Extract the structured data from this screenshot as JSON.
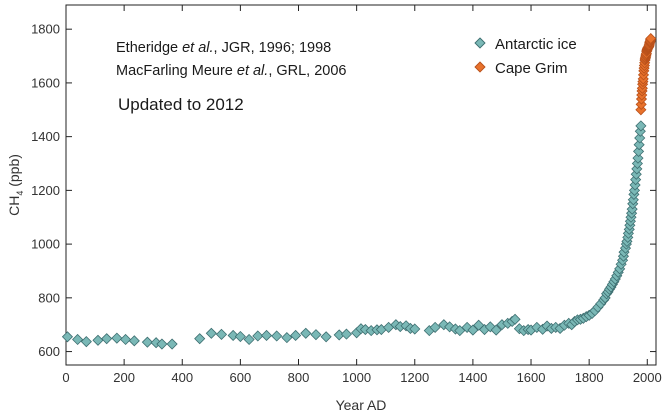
{
  "chart_data": {
    "type": "scatter",
    "xlabel": "Year AD",
    "ylabel": {
      "prefix": "CH",
      "subscript": "4",
      "suffix": " (ppb)"
    },
    "xlim": [
      0,
      2030
    ],
    "ylim": [
      550,
      1890
    ],
    "xticks": [
      0,
      200,
      400,
      600,
      800,
      1000,
      1200,
      1400,
      1600,
      1800,
      2000
    ],
    "xtick_labels": [
      "0",
      "200",
      "400",
      "600",
      "800",
      "1000",
      "1200",
      "1400",
      "1600",
      "1800",
      "2000"
    ],
    "yticks": [
      600,
      800,
      1000,
      1200,
      1400,
      1600,
      1800
    ],
    "ytick_labels": [
      "600",
      "800",
      "1000",
      "1200",
      "1400",
      "1600",
      "1800"
    ],
    "grid": false,
    "legend": "top-right",
    "annotations": {
      "ref_line1": {
        "before": "Etheridge ",
        "italic": "et al.",
        "after": ", JGR, 1996; 1998"
      },
      "ref_line2": {
        "before": "MacFarling Meure ",
        "italic": "et al.",
        "after": ", GRL, 2006"
      },
      "updated": "Updated to 2012"
    },
    "series": [
      {
        "name": "Antarctic ice",
        "color": "#7ab8b6",
        "edge": "#3d6e70",
        "marker": "diamond",
        "points": [
          [
            5,
            655
          ],
          [
            40,
            645
          ],
          [
            70,
            637
          ],
          [
            110,
            642
          ],
          [
            140,
            648
          ],
          [
            175,
            650
          ],
          [
            205,
            645
          ],
          [
            235,
            640
          ],
          [
            280,
            635
          ],
          [
            310,
            633
          ],
          [
            330,
            628
          ],
          [
            365,
            628
          ],
          [
            460,
            648
          ],
          [
            500,
            668
          ],
          [
            535,
            664
          ],
          [
            575,
            660
          ],
          [
            600,
            656
          ],
          [
            630,
            645
          ],
          [
            660,
            658
          ],
          [
            690,
            660
          ],
          [
            725,
            658
          ],
          [
            760,
            652
          ],
          [
            790,
            660
          ],
          [
            825,
            668
          ],
          [
            860,
            663
          ],
          [
            895,
            655
          ],
          [
            940,
            662
          ],
          [
            965,
            665
          ],
          [
            1000,
            670
          ],
          [
            1015,
            685
          ],
          [
            1030,
            682
          ],
          [
            1050,
            678
          ],
          [
            1070,
            681
          ],
          [
            1085,
            682
          ],
          [
            1110,
            690
          ],
          [
            1135,
            700
          ],
          [
            1150,
            693
          ],
          [
            1170,
            696
          ],
          [
            1185,
            686
          ],
          [
            1200,
            684
          ],
          [
            1250,
            678
          ],
          [
            1270,
            690
          ],
          [
            1300,
            700
          ],
          [
            1320,
            692
          ],
          [
            1340,
            684
          ],
          [
            1355,
            678
          ],
          [
            1380,
            690
          ],
          [
            1400,
            680
          ],
          [
            1420,
            698
          ],
          [
            1440,
            682
          ],
          [
            1460,
            692
          ],
          [
            1480,
            680
          ],
          [
            1500,
            700
          ],
          [
            1520,
            705
          ],
          [
            1535,
            712
          ],
          [
            1545,
            720
          ],
          [
            1560,
            685
          ],
          [
            1575,
            678
          ],
          [
            1590,
            682
          ],
          [
            1600,
            680
          ],
          [
            1620,
            690
          ],
          [
            1640,
            683
          ],
          [
            1655,
            695
          ],
          [
            1670,
            686
          ],
          [
            1685,
            690
          ],
          [
            1700,
            686
          ],
          [
            1715,
            698
          ],
          [
            1730,
            705
          ],
          [
            1740,
            700
          ],
          [
            1750,
            712
          ],
          [
            1760,
            718
          ],
          [
            1770,
            720
          ],
          [
            1780,
            724
          ],
          [
            1790,
            730
          ],
          [
            1800,
            735
          ],
          [
            1810,
            742
          ],
          [
            1820,
            752
          ],
          [
            1830,
            765
          ],
          [
            1840,
            778
          ],
          [
            1850,
            792
          ],
          [
            1855,
            800
          ],
          [
            1860,
            815
          ],
          [
            1865,
            822
          ],
          [
            1870,
            832
          ],
          [
            1875,
            840
          ],
          [
            1880,
            850
          ],
          [
            1885,
            860
          ],
          [
            1890,
            870
          ],
          [
            1895,
            882
          ],
          [
            1900,
            895
          ],
          [
            1905,
            908
          ],
          [
            1910,
            925
          ],
          [
            1915,
            940
          ],
          [
            1918,
            955
          ],
          [
            1920,
            970
          ],
          [
            1925,
            985
          ],
          [
            1928,
            1000
          ],
          [
            1930,
            1010
          ],
          [
            1933,
            1025
          ],
          [
            1935,
            1040
          ],
          [
            1938,
            1055
          ],
          [
            1940,
            1070
          ],
          [
            1942,
            1085
          ],
          [
            1944,
            1100
          ],
          [
            1946,
            1115
          ],
          [
            1948,
            1130
          ],
          [
            1950,
            1150
          ],
          [
            1952,
            1165
          ],
          [
            1954,
            1185
          ],
          [
            1956,
            1200
          ],
          [
            1958,
            1220
          ],
          [
            1960,
            1240
          ],
          [
            1962,
            1260
          ],
          [
            1964,
            1280
          ],
          [
            1966,
            1300
          ],
          [
            1968,
            1320
          ],
          [
            1970,
            1345
          ],
          [
            1972,
            1370
          ],
          [
            1974,
            1395
          ],
          [
            1976,
            1420
          ],
          [
            1978,
            1440
          ]
        ]
      },
      {
        "name": "Cape Grim",
        "color": "#e8722c",
        "edge": "#b8501a",
        "marker": "diamond",
        "points": [
          [
            1978,
            1500
          ],
          [
            1979,
            1520
          ],
          [
            1980,
            1540
          ],
          [
            1981,
            1555
          ],
          [
            1982,
            1570
          ],
          [
            1983,
            1580
          ],
          [
            1984,
            1595
          ],
          [
            1985,
            1605
          ],
          [
            1986,
            1615
          ],
          [
            1987,
            1630
          ],
          [
            1988,
            1645
          ],
          [
            1989,
            1655
          ],
          [
            1990,
            1665
          ],
          [
            1991,
            1675
          ],
          [
            1992,
            1685
          ],
          [
            1993,
            1690
          ],
          [
            1994,
            1695
          ],
          [
            1995,
            1700
          ],
          [
            1996,
            1705
          ],
          [
            1997,
            1710
          ],
          [
            1998,
            1718
          ],
          [
            1999,
            1722
          ],
          [
            2000,
            1725
          ],
          [
            2001,
            1728
          ],
          [
            2002,
            1730
          ],
          [
            2003,
            1732
          ],
          [
            2004,
            1733
          ],
          [
            2005,
            1735
          ],
          [
            2006,
            1738
          ],
          [
            2007,
            1742
          ],
          [
            2008,
            1748
          ],
          [
            2009,
            1752
          ],
          [
            2010,
            1755
          ],
          [
            2011,
            1760
          ],
          [
            2012,
            1765
          ]
        ]
      }
    ]
  }
}
